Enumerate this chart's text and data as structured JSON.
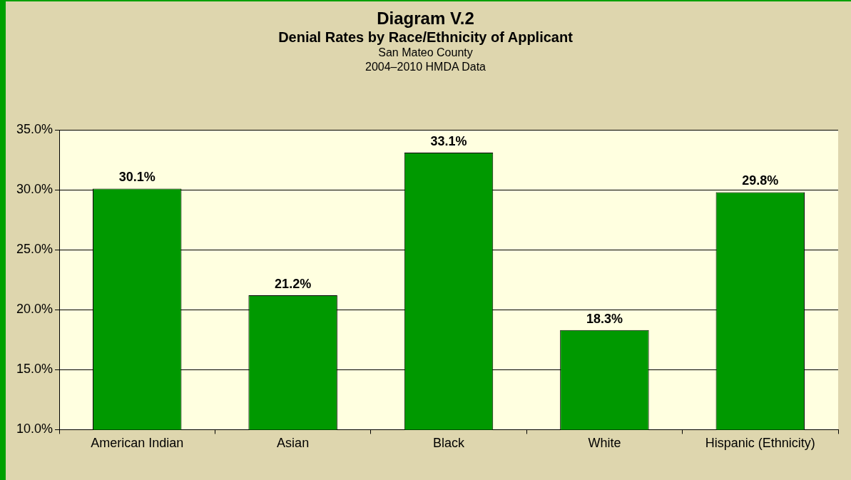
{
  "chart_data": {
    "type": "bar",
    "title": "Diagram V.2",
    "subtitle": "Denial Rates by Race/Ethnicity of Applicant",
    "annotations": [
      "San Mateo County",
      "2004–2010 HMDA Data"
    ],
    "categories": [
      "American Indian",
      "Asian",
      "Black",
      "White",
      "Hispanic (Ethnicity)"
    ],
    "values": [
      30.1,
      21.2,
      33.1,
      18.3,
      29.8
    ],
    "value_labels": [
      "30.1%",
      "21.2%",
      "33.1%",
      "18.3%",
      "29.8%"
    ],
    "color": "#009900",
    "ylim": [
      10,
      35
    ],
    "yticks": [
      {
        "value": 10,
        "label": "10.0%"
      },
      {
        "value": 15,
        "label": "15.0%"
      },
      {
        "value": 20,
        "label": "20.0%"
      },
      {
        "value": 25,
        "label": "25.0%"
      },
      {
        "value": 30,
        "label": "30.0%"
      },
      {
        "value": 35,
        "label": "35.0%"
      }
    ],
    "grid": "y",
    "legend": false
  }
}
